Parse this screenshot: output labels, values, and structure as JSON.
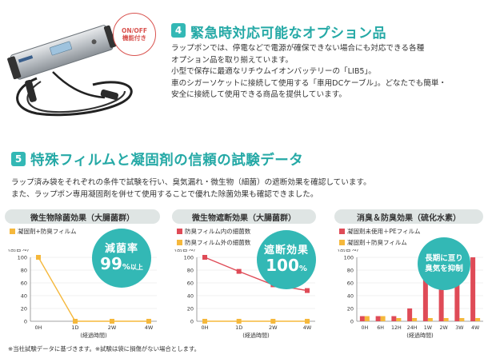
{
  "section4": {
    "number": "4",
    "title": "緊急時対応可能なオプション品",
    "badge": [
      "ON/OFF",
      "機能付き"
    ],
    "body": [
      "ラップポンでは、停電などで電源が確保できない場合にも対応できる各種",
      "オプション品を取り揃えています。",
      "小型で保存に最適なリチウムイオンバッテリーの「LIB5」。",
      "車のシガーソケットに接続して使用する「車用DCケーブル」。どなたでも簡単・",
      "安全に接続して使用できる商品を提供しています。"
    ]
  },
  "section5": {
    "number": "5",
    "title": "特殊フィルムと凝固剤の信頼の試験データ",
    "body": [
      "ラップ済み袋をそれぞれの条件で試験を行い、臭気漏れ・微生物（細菌）の遮断効果を確認しています。",
      "また、ラップポン専用凝固剤を併せて使用することで優れた除菌効果も確認できました。"
    ]
  },
  "colors": {
    "accent": "#33b8b5",
    "title": "#25a9a6",
    "orange": "#f5b83c",
    "red": "#df4b57",
    "pink": "#e6a8ad"
  },
  "chart_data": [
    {
      "type": "line",
      "title": "微生物除菌効果（大腸菌群）",
      "ylabel": "(割合%)",
      "xlabel": "(経過時間)",
      "categories": [
        "0H",
        "1D",
        "2W",
        "4W"
      ],
      "yticks": [
        "0",
        "20",
        "40",
        "60",
        "80",
        "100"
      ],
      "ylim": [
        0,
        100
      ],
      "series": [
        {
          "name": "凝固剤+防臭フィルム",
          "color": "#f5b83c",
          "values": [
            100,
            0,
            0,
            0
          ]
        }
      ],
      "callout": [
        "減菌率",
        "99",
        "%",
        "以上"
      ]
    },
    {
      "type": "line",
      "title": "微生物遮断効果（大腸菌群）",
      "ylabel": "(割合%)",
      "xlabel": "(経過時間)",
      "categories": [
        "0H",
        "1D",
        "2W",
        "4W"
      ],
      "yticks": [
        "0",
        "20",
        "40",
        "60",
        "80",
        "100"
      ],
      "ylim": [
        0,
        100
      ],
      "series": [
        {
          "name": "防臭フィルム内の細菌数",
          "color": "#df4b57",
          "values": [
            100,
            78,
            57,
            48
          ]
        },
        {
          "name": "防臭フィルム外の細菌数",
          "color": "#f5b83c",
          "values": [
            0,
            0,
            0,
            0
          ]
        }
      ],
      "callout": [
        "遮断効果",
        "100",
        "%"
      ]
    },
    {
      "type": "bar",
      "title": "消臭＆防臭効果（硫化水素）",
      "ylabel": "(割合%)",
      "xlabel": "(経過時間)",
      "categories": [
        "0H",
        "6H",
        "12H",
        "24H",
        "1W",
        "2W",
        "3W",
        "4W"
      ],
      "yticks": [
        "0",
        "20",
        "40",
        "60",
        "80",
        "100"
      ],
      "ylim": [
        0,
        100
      ],
      "series": [
        {
          "name": "凝固剤未使用＋PEフィルム",
          "color": "#df4b57",
          "values": [
            8,
            8,
            8,
            20,
            100,
            100,
            100,
            100
          ]
        },
        {
          "name": "凝固剤＋防臭フィルム",
          "color": "#f5b83c",
          "values": [
            8,
            8,
            5,
            5,
            5,
            5,
            5,
            5
          ]
        }
      ],
      "callout": [
        "長期に亘り",
        "臭気を抑制"
      ]
    }
  ],
  "footnote": "※当社試験データに基づきます。※試験は袋に損傷がない場合とします。"
}
